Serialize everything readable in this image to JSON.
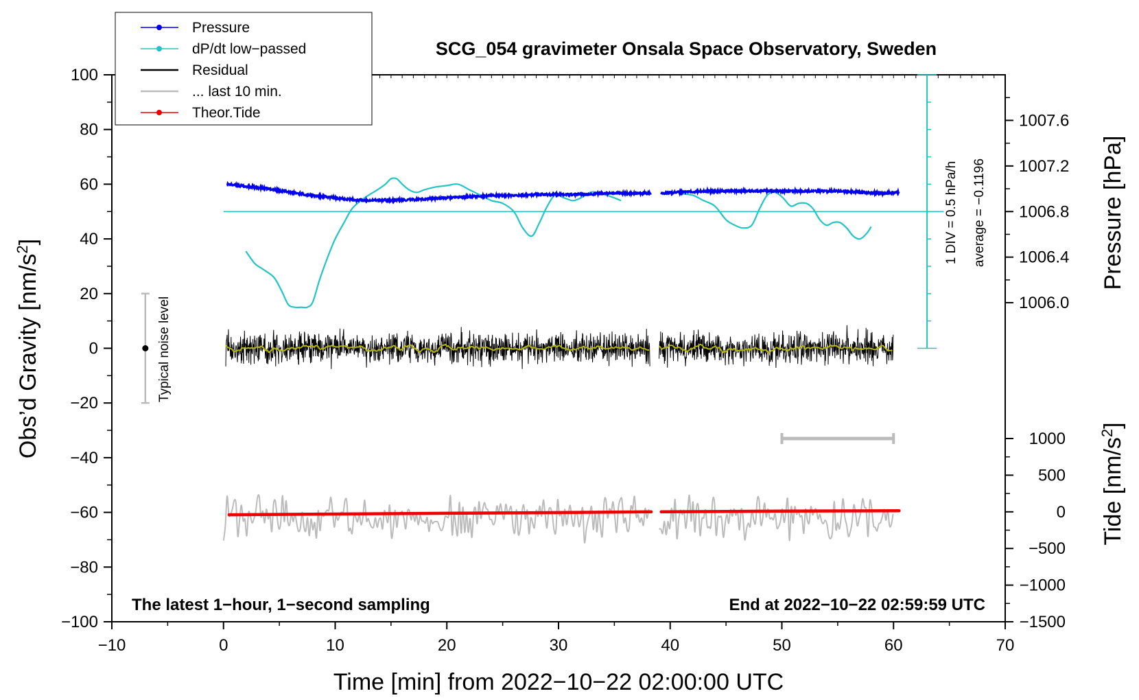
{
  "chart_data": {
    "type": "line",
    "title": "SCG_054 gravimeter Onsala Space Observatory, Sweden",
    "xlabel": "Time [min] from 2022−10−22 02:00:00 UTC",
    "ylabel_left": "Obs’d Gravity [nm/s",
    "ylabel_left_exp": "2",
    "ylabel_left_close": "]",
    "ylabel_right_pressure": "Pressure [hPa]",
    "ylabel_right_tide": "Tide [nm/s",
    "ylabel_right_tide_exp": "2",
    "ylabel_right_tide_close": "]",
    "xlim": [
      -10,
      70
    ],
    "ylim_left": [
      -100,
      100
    ],
    "x_ticks": [
      "−10",
      "0",
      "10",
      "20",
      "30",
      "40",
      "50",
      "60",
      "70"
    ],
    "y_ticks_left": [
      "100",
      "80",
      "60",
      "40",
      "20",
      "0",
      "−20",
      "−40",
      "−60",
      "−80",
      "−100"
    ],
    "pressure_ticks": [
      "1007.6",
      "1007.2",
      "1006.8",
      "1006.4",
      "1006.0"
    ],
    "pressure_tick_values": [
      1007.6,
      1007.2,
      1006.8,
      1006.4,
      1006.0
    ],
    "pressure_axis": {
      "hpa_at_gravity_0": 1005.6,
      "hpa_at_gravity_100": 1008.0
    },
    "tide_ticks": [
      "1000",
      "500",
      "0",
      "−500",
      "−1000",
      "−1500"
    ],
    "tide_tick_values": [
      1000,
      500,
      0,
      -500,
      -1000,
      -1500
    ],
    "tide_axis": {
      "tide_at_gravity_minus100": -1500,
      "tide_at_gravity_minus33": 1000
    },
    "legend": {
      "position": "top-left",
      "entries": [
        {
          "label": "Pressure",
          "color": "#0000ee",
          "style": "line-dot"
        },
        {
          "label": "dP/dt low−passed",
          "color": "#22c4c4",
          "style": "line-dot"
        },
        {
          "label": "Residual",
          "color": "#000000",
          "style": "line"
        },
        {
          "label": "... last 10 min.",
          "color": "#bbbbbb",
          "style": "line"
        },
        {
          "label": "Theor.Tide",
          "color": "#ee0000",
          "style": "line-dot"
        }
      ]
    },
    "annotations": {
      "noise_label": "Typical noise level",
      "noise_range": [
        -20,
        20
      ],
      "noise_x": -7,
      "dpdt_scale": "1 DIV = 0.5 hPa/h",
      "dpdt_average": "average = −0.1196",
      "dpdt_axis_x": 63,
      "dpdt_baseline_gravity": 50,
      "dpdt_axis_range_gravity": [
        0,
        100
      ],
      "footer_left": "The latest 1−hour, 1−second sampling",
      "footer_right": "End at 2022−10−22 02:59:59 UTC",
      "window_bar": [
        50,
        60
      ],
      "window_bar_gravity": -33
    },
    "series": [
      {
        "name": "Pressure",
        "unit": "hPa",
        "color": "#0000ee",
        "segments": [
          {
            "x": [
              0.3,
              2,
              4,
              6,
              8,
              10,
              12,
              14,
              16,
              18,
              20,
              22,
              24,
              26,
              28,
              30,
              32,
              34,
              36,
              38.3
            ],
            "y": [
              1007.04,
              1007.02,
              1007.0,
              1006.97,
              1006.94,
              1006.92,
              1006.9,
              1006.9,
              1006.9,
              1006.91,
              1006.92,
              1006.93,
              1006.94,
              1006.94,
              1006.95,
              1006.95,
              1006.95,
              1006.96,
              1006.96,
              1006.96
            ]
          },
          {
            "x": [
              39.2,
              41,
              43,
              45,
              47,
              49,
              51,
              53,
              55,
              57,
              59,
              60.5
            ],
            "y": [
              1006.96,
              1006.97,
              1006.98,
              1006.98,
              1006.98,
              1006.98,
              1006.98,
              1006.98,
              1006.98,
              1006.97,
              1006.96,
              1006.97
            ]
          }
        ]
      },
      {
        "name": "dP/dt low−passed",
        "unit": "gravity axis units (baseline 50 = average)",
        "color": "#22c4c4",
        "segments": [
          {
            "x": [
              2.0,
              2.8,
              3.5,
              4.5,
              5.2,
              5.8,
              6.4,
              7.0,
              7.5,
              8.0,
              8.6,
              9.3,
              10.0,
              10.8,
              11.5,
              12.3,
              13.0,
              13.8,
              14.5,
              15.0,
              15.5,
              16.0,
              16.6,
              17.3,
              18.0,
              19.0,
              20.0,
              21.0,
              22.0,
              23.0,
              24.0,
              25.0,
              26.0,
              26.8,
              27.6,
              28.3,
              29.0,
              29.7,
              30.5,
              31.3,
              32.0,
              32.8,
              33.5,
              34.3,
              35.0,
              35.6
            ],
            "y": [
              35.5,
              31,
              29,
              26,
              21,
              16,
              15,
              15,
              15,
              17,
              25,
              33,
              40,
              46,
              51,
              54,
              56,
              58,
              60,
              62,
              62,
              60,
              58,
              57,
              58,
              59,
              59.5,
              60,
              58,
              56,
              54,
              53,
              50,
              44,
              41,
              46,
              52,
              56,
              55,
              54,
              55,
              57,
              57,
              56,
              55,
              54
            ]
          },
          {
            "x": [
              41.0,
              42.0,
              43.0,
              44.0,
              45.0,
              45.8,
              46.5,
              47.3,
              48.0,
              48.7,
              49.4,
              50.1,
              50.8,
              51.5,
              52.2,
              52.8,
              53.4,
              54.0,
              54.6,
              55.2,
              55.8,
              56.4,
              57.0,
              57.6,
              58.0
            ],
            "y": [
              56.5,
              56,
              54,
              52,
              47,
              45,
              44,
              45,
              51,
              56,
              57,
              55,
              52,
              53,
              53,
              51,
              47,
              45,
              46,
              46,
              44,
              41,
              40,
              42,
              44.5
            ]
          }
        ]
      },
      {
        "name": "Residual",
        "unit": "nm/s²",
        "color": "#000000",
        "note": "1-second samples, noise roughly ±8 nm/s² around 0; yellow smoothed trace near 0",
        "smoothed_color": "#b8b800",
        "segments": [
          {
            "x": [
              0.2,
              38.2
            ],
            "y_mean": 0,
            "amplitude": 8
          },
          {
            "x": [
              39.0,
              60.0
            ],
            "y_mean": 0,
            "amplitude": 8
          }
        ]
      },
      {
        "name": "Theor.Tide",
        "unit": "nm/s²",
        "color": "#ee0000",
        "segments": [
          {
            "x": [
              0.5,
              10,
              20,
              30,
              38.3
            ],
            "y": [
              -40,
              -30,
              -20,
              -10,
              0
            ]
          },
          {
            "x": [
              39.2,
              45,
              50,
              55,
              60.5
            ],
            "y": [
              0,
              5,
              10,
              12,
              15
            ]
          }
        ]
      },
      {
        "name": "... last 10 min.",
        "unit": "nm/s² (shifted, on gravity axis)",
        "color": "#bbbbbb",
        "note": "last 10 min residual stretched over full time span, centered near −62",
        "segments": [
          {
            "x": [
              0.0,
              38.2
            ],
            "y_mean": -62,
            "amplitude": 9
          },
          {
            "x": [
              39.0,
              60.0
            ],
            "y_mean": -62,
            "amplitude": 9
          }
        ]
      }
    ]
  }
}
